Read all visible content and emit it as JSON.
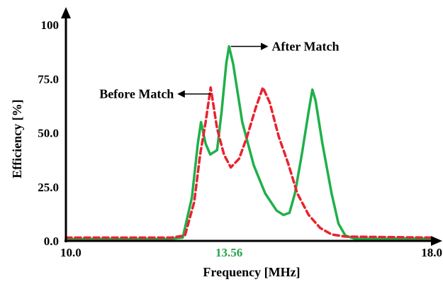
{
  "chart_data": {
    "type": "line",
    "xlabel": "Frequency [MHz]",
    "ylabel": "Efficiency [%]",
    "xlim": [
      10.0,
      18.0
    ],
    "ylim": [
      0,
      100
    ],
    "x_ticks": [
      {
        "value": 10.0,
        "label": "10.0",
        "color": "#000000"
      },
      {
        "value": 13.56,
        "label": "13.56",
        "color": "#27a347"
      },
      {
        "value": 18.0,
        "label": "18.0",
        "color": "#000000"
      }
    ],
    "y_ticks": [
      {
        "value": 0,
        "label": "0.0"
      },
      {
        "value": 25,
        "label": "25.0"
      },
      {
        "value": 50,
        "label": "50.0"
      },
      {
        "value": 75,
        "label": "75.0"
      },
      {
        "value": 100,
        "label": "100"
      }
    ],
    "grid": false,
    "series": [
      {
        "name": "After Match",
        "color": "#1fb04a",
        "dashed": false,
        "points": [
          [
            10.0,
            0.8
          ],
          [
            12.2,
            0.8
          ],
          [
            12.55,
            1.5
          ],
          [
            12.75,
            20
          ],
          [
            12.88,
            45
          ],
          [
            12.95,
            55
          ],
          [
            13.05,
            45
          ],
          [
            13.15,
            40
          ],
          [
            13.3,
            42
          ],
          [
            13.4,
            60
          ],
          [
            13.5,
            82
          ],
          [
            13.56,
            90
          ],
          [
            13.65,
            82
          ],
          [
            13.85,
            55
          ],
          [
            14.1,
            35
          ],
          [
            14.35,
            22
          ],
          [
            14.6,
            14
          ],
          [
            14.75,
            12
          ],
          [
            14.88,
            13
          ],
          [
            15.0,
            22
          ],
          [
            15.15,
            40
          ],
          [
            15.3,
            60
          ],
          [
            15.38,
            70
          ],
          [
            15.45,
            65
          ],
          [
            15.6,
            45
          ],
          [
            15.8,
            22
          ],
          [
            15.95,
            8
          ],
          [
            16.1,
            2.5
          ],
          [
            16.3,
            1
          ],
          [
            18.0,
            1
          ]
        ]
      },
      {
        "name": "Before Match",
        "color": "#e8232f",
        "dashed": true,
        "points": [
          [
            10.0,
            1.5
          ],
          [
            12.3,
            1.5
          ],
          [
            12.6,
            2.5
          ],
          [
            12.8,
            18
          ],
          [
            12.93,
            40
          ],
          [
            13.05,
            55
          ],
          [
            13.16,
            71
          ],
          [
            13.3,
            52
          ],
          [
            13.45,
            40
          ],
          [
            13.6,
            34
          ],
          [
            13.78,
            38
          ],
          [
            13.95,
            48
          ],
          [
            14.15,
            62
          ],
          [
            14.3,
            71
          ],
          [
            14.45,
            64
          ],
          [
            14.65,
            48
          ],
          [
            14.85,
            36
          ],
          [
            15.05,
            22
          ],
          [
            15.3,
            12
          ],
          [
            15.55,
            6
          ],
          [
            15.8,
            3
          ],
          [
            16.1,
            2
          ],
          [
            18.0,
            1.5
          ]
        ]
      }
    ],
    "annotations": [
      {
        "text": "After Match",
        "series": "After Match",
        "x_from": 13.6,
        "y": 90,
        "x_to": 14.4
      },
      {
        "text": "Before Match",
        "series": "Before Match",
        "x_from": 13.16,
        "y": 68,
        "x_to": 12.45
      }
    ]
  }
}
